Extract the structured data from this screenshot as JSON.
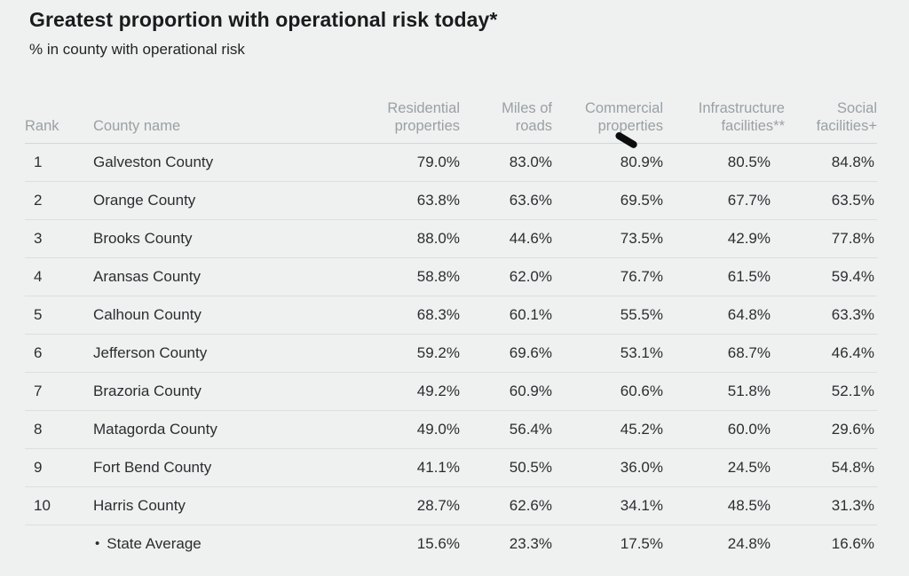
{
  "colors": {
    "background": "#eff1f1",
    "title_text": "#1a1b1c",
    "header_text": "#9aa0a3",
    "body_text": "#2b2d2f",
    "row_separator": "#dcdfdf",
    "annotation_mark": "#0d0d0d"
  },
  "chart_data": {
    "type": "table",
    "title": "Greatest proportion with operational risk today*",
    "subtitle": "% in county with operational risk",
    "columns": [
      {
        "key": "rank",
        "label": "Rank",
        "label_lines": [
          "Rank"
        ],
        "align": "left"
      },
      {
        "key": "county",
        "label": "County name",
        "label_lines": [
          "County name"
        ],
        "align": "left"
      },
      {
        "key": "residential",
        "label": "Residential properties",
        "label_lines": [
          "Residential",
          "properties"
        ],
        "align": "right"
      },
      {
        "key": "roads",
        "label": "Miles of roads",
        "label_lines": [
          "Miles of",
          "roads"
        ],
        "align": "right"
      },
      {
        "key": "commercial",
        "label": "Commercial properties",
        "label_lines": [
          "Commercial",
          "properties"
        ],
        "align": "right"
      },
      {
        "key": "infrastructure",
        "label": "Infrastructure facilities**",
        "label_lines": [
          "Infrastructure",
          "facilities**"
        ],
        "align": "right"
      },
      {
        "key": "social",
        "label": "Social facilities+",
        "label_lines": [
          "Social",
          "facilities+"
        ],
        "align": "right"
      }
    ],
    "rows": [
      {
        "rank": "1",
        "county": "Galveston County",
        "residential": "79.0%",
        "roads": "83.0%",
        "commercial": "80.9%",
        "infrastructure": "80.5%",
        "social": "84.8%"
      },
      {
        "rank": "2",
        "county": "Orange County",
        "residential": "63.8%",
        "roads": "63.6%",
        "commercial": "69.5%",
        "infrastructure": "67.7%",
        "social": "63.5%"
      },
      {
        "rank": "3",
        "county": "Brooks County",
        "residential": "88.0%",
        "roads": "44.6%",
        "commercial": "73.5%",
        "infrastructure": "42.9%",
        "social": "77.8%"
      },
      {
        "rank": "4",
        "county": "Aransas County",
        "residential": "58.8%",
        "roads": "62.0%",
        "commercial": "76.7%",
        "infrastructure": "61.5%",
        "social": "59.4%"
      },
      {
        "rank": "5",
        "county": "Calhoun County",
        "residential": "68.3%",
        "roads": "60.1%",
        "commercial": "55.5%",
        "infrastructure": "64.8%",
        "social": "63.3%"
      },
      {
        "rank": "6",
        "county": "Jefferson County",
        "residential": "59.2%",
        "roads": "69.6%",
        "commercial": "53.1%",
        "infrastructure": "68.7%",
        "social": "46.4%"
      },
      {
        "rank": "7",
        "county": "Brazoria County",
        "residential": "49.2%",
        "roads": "60.9%",
        "commercial": "60.6%",
        "infrastructure": "51.8%",
        "social": "52.1%"
      },
      {
        "rank": "8",
        "county": "Matagorda County",
        "residential": "49.0%",
        "roads": "56.4%",
        "commercial": "45.2%",
        "infrastructure": "60.0%",
        "social": "29.6%"
      },
      {
        "rank": "9",
        "county": "Fort Bend County",
        "residential": "41.1%",
        "roads": "50.5%",
        "commercial": "36.0%",
        "infrastructure": "24.5%",
        "social": "54.8%"
      },
      {
        "rank": "10",
        "county": "Harris County",
        "residential": "28.7%",
        "roads": "62.6%",
        "commercial": "34.1%",
        "infrastructure": "48.5%",
        "social": "31.3%"
      },
      {
        "rank": "",
        "county": "State Average",
        "is_average": true,
        "residential": "15.6%",
        "roads": "23.3%",
        "commercial": "17.5%",
        "infrastructure": "24.8%",
        "social": "16.6%"
      }
    ]
  }
}
